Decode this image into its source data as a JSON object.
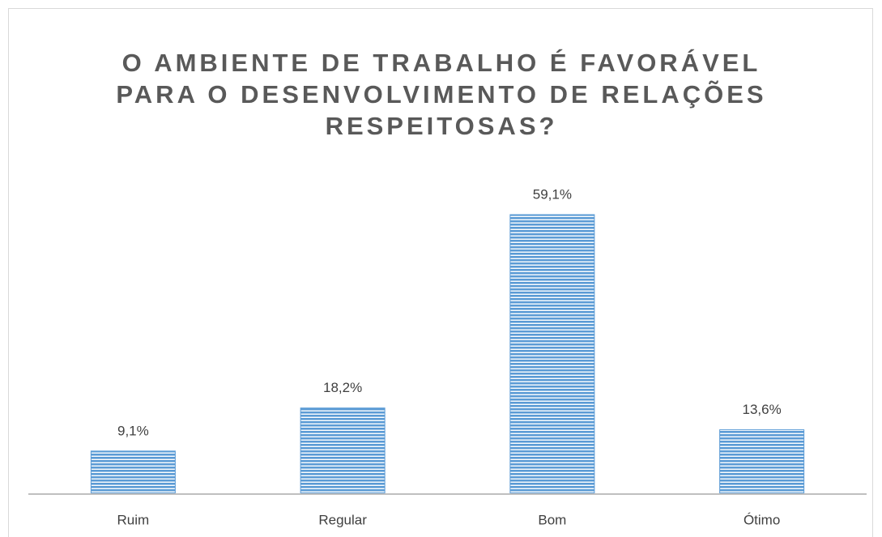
{
  "chart_data": {
    "type": "bar",
    "title": "O AMBIENTE DE TRABALHO É FAVORÁVEL PARA O DESENVOLVIMENTO DE RELAÇÕES RESPEITOSAS?",
    "categories": [
      "Ruim",
      "Regular",
      "Bom",
      "Ótimo"
    ],
    "values": [
      9.1,
      18.2,
      59.1,
      13.6
    ],
    "value_labels": [
      "9,1%",
      "18,2%",
      "59,1%",
      "13,6%"
    ],
    "color": "#5b9bd5"
  }
}
